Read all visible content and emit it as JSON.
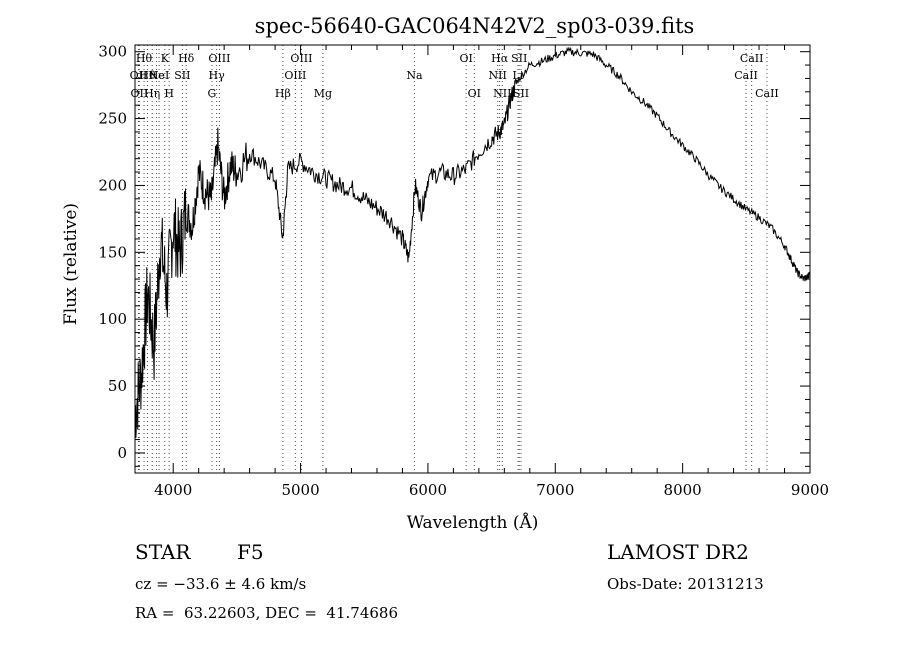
{
  "chart_data": {
    "type": "line",
    "title": "spec-56640-GAC064N42V2_sp03-039.fits",
    "xlabel": "Wavelength (Å)",
    "ylabel": "Flux (relative)",
    "xlim": [
      3700,
      9000
    ],
    "ylim": [
      -15,
      305
    ],
    "xticks": [
      4000,
      5000,
      6000,
      7000,
      8000,
      9000
    ],
    "yticks": [
      0,
      50,
      100,
      150,
      200,
      250,
      300
    ],
    "grid": false,
    "line_color": "#000000",
    "marker_color": "#ff0000",
    "series": [
      {
        "x": [
          3700,
          3750,
          3800,
          3850,
          3900,
          3950,
          4000,
          4050,
          4100,
          4150,
          4200,
          4250,
          4300,
          4350,
          4400,
          4450,
          4500,
          4600,
          4700,
          4800,
          4860,
          4900,
          5000,
          5100,
          5200,
          5300,
          5400,
          5500,
          5600,
          5700,
          5800,
          5850,
          5900,
          5950,
          6000,
          6100,
          6200,
          6300,
          6400,
          6500,
          6560,
          6600,
          6650,
          6700,
          6800,
          6900,
          7000,
          7100,
          7200,
          7300,
          7400,
          7500,
          7600,
          7700,
          7800,
          7900,
          8000,
          8100,
          8200,
          8300,
          8400,
          8500,
          8600,
          8700,
          8800,
          8850,
          8900,
          8950,
          9000
        ],
        "y": [
          30,
          60,
          120,
          80,
          160,
          120,
          170,
          150,
          180,
          170,
          210,
          195,
          190,
          230,
          190,
          215,
          210,
          225,
          215,
          205,
          160,
          212,
          218,
          210,
          205,
          200,
          198,
          190,
          183,
          175,
          160,
          145,
          200,
          180,
          205,
          210,
          207,
          212,
          225,
          235,
          240,
          245,
          265,
          278,
          290,
          293,
          297,
          300,
          299,
          298,
          290,
          282,
          270,
          262,
          252,
          240,
          230,
          220,
          208,
          198,
          190,
          182,
          176,
          168,
          155,
          145,
          135,
          130,
          133
        ]
      }
    ],
    "line_markers": [
      {
        "x": 3727,
        "label": "OII",
        "row": 2
      },
      {
        "x": 3734,
        "label": "OII",
        "row": 3
      },
      {
        "x": 3771,
        "label": "Hθ",
        "row": 1
      },
      {
        "x": 3798,
        "label": "Hθ",
        "row": 2
      },
      {
        "x": 3835,
        "label": "Hη",
        "row": 3
      },
      {
        "x": 3869,
        "label": "Ne",
        "row": 2
      },
      {
        "x": 3889,
        "label": "HeI",
        "row": 2
      },
      {
        "x": 3934,
        "label": "K",
        "row": 1
      },
      {
        "x": 3968,
        "label": "H",
        "row": 3
      },
      {
        "x": 4072,
        "label": "SII",
        "row": 2
      },
      {
        "x": 4102,
        "label": "Hδ",
        "row": 1
      },
      {
        "x": 4304,
        "label": "G",
        "row": 3
      },
      {
        "x": 4341,
        "label": "Hγ",
        "row": 2
      },
      {
        "x": 4363,
        "label": "OIII",
        "row": 1
      },
      {
        "x": 4861,
        "label": "Hβ",
        "row": 3
      },
      {
        "x": 4959,
        "label": "OIII",
        "row": 2
      },
      {
        "x": 5007,
        "label": "OIII",
        "row": 1
      },
      {
        "x": 5175,
        "label": "Mg",
        "row": 3
      },
      {
        "x": 5894,
        "label": "Na",
        "row": 2
      },
      {
        "x": 6300,
        "label": "OI",
        "row": 1
      },
      {
        "x": 6364,
        "label": "OI",
        "row": 3
      },
      {
        "x": 6548,
        "label": "NII",
        "row": 2
      },
      {
        "x": 6563,
        "label": "Hα",
        "row": 1
      },
      {
        "x": 6584,
        "label": "NII",
        "row": 3
      },
      {
        "x": 6707,
        "label": "Li",
        "row": 2
      },
      {
        "x": 6717,
        "label": "SII",
        "row": 1
      },
      {
        "x": 6731,
        "label": "SII",
        "row": 3
      },
      {
        "x": 8498,
        "label": "CaII",
        "row": 2
      },
      {
        "x": 8542,
        "label": "CaII",
        "row": 1
      },
      {
        "x": 8662,
        "label": "CaII",
        "row": 3
      }
    ]
  },
  "info": {
    "class_label": "STAR",
    "subclass": "F5",
    "survey": "LAMOST DR2",
    "cz": "cz = −33.6 ± 4.6 km/s",
    "obs_date": "Obs-Date: 20131213",
    "coords": "RA =  63.22603, DEC =  41.74686"
  }
}
